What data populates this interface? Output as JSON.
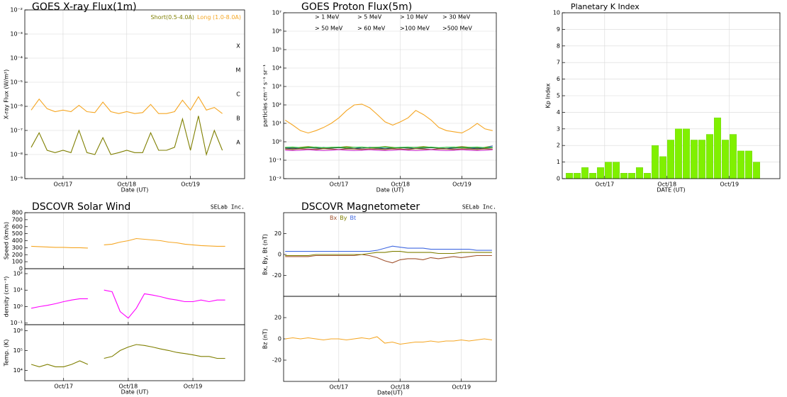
{
  "chart_data": [
    {
      "type": "line",
      "title": "GOES X-ray Flux(1m)",
      "xlabel": "Date (UT)",
      "ylabel": "X-ray Flux (W/m²)",
      "log": true,
      "grid": true,
      "xlim": [
        16.4,
        19.85
      ],
      "xticks": [
        {
          "value": 17,
          "label": "Oct/17"
        },
        {
          "value": 18,
          "label": "Oct/18"
        },
        {
          "value": 19,
          "label": "Oct/19"
        }
      ],
      "ylim": [
        1e-09,
        0.01
      ],
      "yticks": [
        {
          "value": 1e-09,
          "label": "10⁻⁹"
        },
        {
          "value": 1e-08,
          "label": "10⁻⁸"
        },
        {
          "value": 1e-07,
          "label": "10⁻⁷"
        },
        {
          "value": 1e-06,
          "label": "10⁻⁶"
        },
        {
          "value": 1e-05,
          "label": "10⁻⁵"
        },
        {
          "value": 0.0001,
          "label": "10⁻⁴"
        },
        {
          "value": 0.001,
          "label": "10⁻³"
        },
        {
          "value": 0.01,
          "label": "10⁻²"
        }
      ],
      "y2lim": [
        1e-09,
        0.01
      ],
      "y2ticks": [
        {
          "value": 3.2e-08,
          "label": "A"
        },
        {
          "value": 3.2e-07,
          "label": "B"
        },
        {
          "value": 3.2e-06,
          "label": "C"
        },
        {
          "value": 3.2e-05,
          "label": "M"
        },
        {
          "value": 0.00032,
          "label": "X"
        }
      ],
      "x": [
        16.5,
        16.625,
        16.75,
        16.875,
        17,
        17.125,
        17.25,
        17.375,
        17.5,
        17.625,
        17.75,
        17.875,
        18,
        18.125,
        18.25,
        18.375,
        18.5,
        18.625,
        18.75,
        18.875,
        19,
        19.125,
        19.25,
        19.375,
        19.5
      ],
      "series": [
        {
          "name": "Short(0.5-4.0A)",
          "color": "#7f7f00",
          "values": [
            2e-08,
            8e-08,
            1.5e-08,
            1.2e-08,
            1.5e-08,
            1.2e-08,
            1e-07,
            1.2e-08,
            1e-08,
            5e-08,
            1e-08,
            1.2e-08,
            1.5e-08,
            1.2e-08,
            1.2e-08,
            8e-08,
            1.5e-08,
            1.5e-08,
            2e-08,
            3e-07,
            1.5e-08,
            4e-07,
            1e-08,
            1e-07,
            1.5e-08
          ]
        },
        {
          "name": "Long (1.0-8.0A)",
          "color": "#f5a623",
          "values": [
            7e-07,
            2e-06,
            8e-07,
            6e-07,
            7e-07,
            6e-07,
            1.1e-06,
            6e-07,
            5.5e-07,
            1.5e-06,
            6e-07,
            5e-07,
            6e-07,
            5e-07,
            5.5e-07,
            1.2e-06,
            5e-07,
            5e-07,
            6e-07,
            1.8e-06,
            7e-07,
            2.5e-06,
            7e-07,
            9e-07,
            5e-07
          ]
        }
      ]
    },
    {
      "type": "line",
      "title": "GOES Proton Flux(5m)",
      "xlabel": "Date (UT)",
      "ylabel": "particles cm⁻² s⁻¹ sr⁻¹",
      "log": true,
      "grid": true,
      "xlim": [
        16.1,
        19.56
      ],
      "xticks": [
        {
          "value": 17,
          "label": "Oct/17"
        },
        {
          "value": 18,
          "label": "Oct/18"
        },
        {
          "value": 19,
          "label": "Oct/19"
        }
      ],
      "ylim": [
        0.01,
        10000000.0
      ],
      "yticks": [
        {
          "value": 0.01,
          "label": "10⁻²"
        },
        {
          "value": 0.1,
          "label": "10⁻¹"
        },
        {
          "value": 1,
          "label": "10⁰"
        },
        {
          "value": 10,
          "label": "10¹"
        },
        {
          "value": 100,
          "label": "10²"
        },
        {
          "value": 1000,
          "label": "10³"
        },
        {
          "value": 10000,
          "label": "10⁴"
        },
        {
          "value": 100000,
          "label": "10⁵"
        },
        {
          "value": 1000000,
          "label": "10⁶"
        },
        {
          "value": 10000000,
          "label": "10⁷"
        }
      ],
      "x": [
        16.125,
        16.25,
        16.375,
        16.5,
        16.625,
        16.75,
        16.875,
        17,
        17.125,
        17.25,
        17.375,
        17.5,
        17.625,
        17.75,
        17.875,
        18,
        18.125,
        18.25,
        18.375,
        18.5,
        18.625,
        18.75,
        18.875,
        19,
        19.125,
        19.25,
        19.375,
        19.5
      ],
      "series": [
        {
          "name": "> 1 MeV",
          "color": "#f5a623",
          "values": [
            15,
            8,
            4,
            3,
            4,
            6,
            10,
            20,
            50,
            100,
            110,
            70,
            30,
            12,
            8,
            12,
            20,
            50,
            30,
            15,
            6,
            4,
            3.5,
            3,
            5,
            10,
            5,
            4
          ]
        },
        {
          "name": "> 5 MeV",
          "color": "#7f7f00",
          "values": [
            0.5,
            0.45,
            0.5,
            0.55,
            0.5,
            0.45,
            0.5,
            0.5,
            0.55,
            0.5,
            0.45,
            0.5,
            0.5,
            0.55,
            0.5,
            0.45,
            0.5,
            0.5,
            0.55,
            0.5,
            0.45,
            0.5,
            0.5,
            0.55,
            0.5,
            0.45,
            0.5,
            0.6
          ]
        },
        {
          "name": "> 10 MeV",
          "color": "#4169e1",
          "values": [
            0.45,
            0.5,
            0.45,
            0.5,
            0.45,
            0.5,
            0.45,
            0.5,
            0.45,
            0.5,
            0.45,
            0.5,
            0.45,
            0.5,
            0.45,
            0.5,
            0.45,
            0.5,
            0.45,
            0.5,
            0.45,
            0.5,
            0.45,
            0.5,
            0.45,
            0.5,
            0.45,
            0.6
          ]
        },
        {
          "name": "> 30 MeV",
          "color": "#d2b48c",
          "values": [
            0.4,
            0.42,
            0.4,
            0.38,
            0.4,
            0.42,
            0.4,
            0.38,
            0.4,
            0.42,
            0.4,
            0.38,
            0.4,
            0.42,
            0.4,
            0.38,
            0.4,
            0.42,
            0.4,
            0.38,
            0.4,
            0.42,
            0.4,
            0.38,
            0.4,
            0.42,
            0.4,
            0.38
          ]
        },
        {
          "name": "> 50 MeV",
          "color": "#2f4f4f",
          "values": [
            0.45,
            0.42,
            0.45,
            0.48,
            0.45,
            0.42,
            0.45,
            0.48,
            0.45,
            0.42,
            0.45,
            0.48,
            0.45,
            0.42,
            0.45,
            0.48,
            0.45,
            0.42,
            0.45,
            0.48,
            0.45,
            0.42,
            0.45,
            0.48,
            0.45,
            0.42,
            0.45,
            0.48
          ]
        },
        {
          "name": "> 60 MeV",
          "color": "#32cd32",
          "values": [
            0.5,
            0.52,
            0.48,
            0.5,
            0.52,
            0.48,
            0.5,
            0.52,
            0.48,
            0.5,
            0.52,
            0.48,
            0.5,
            0.52,
            0.48,
            0.5,
            0.52,
            0.48,
            0.5,
            0.52,
            0.48,
            0.5,
            0.52,
            0.48,
            0.5,
            0.52,
            0.48,
            0.5
          ]
        },
        {
          "name": ">100 MeV",
          "color": "#a0522d",
          "values": [
            0.4,
            0.38,
            0.42,
            0.4,
            0.38,
            0.42,
            0.4,
            0.38,
            0.42,
            0.4,
            0.38,
            0.42,
            0.4,
            0.38,
            0.42,
            0.4,
            0.38,
            0.42,
            0.4,
            0.38,
            0.42,
            0.4,
            0.38,
            0.42,
            0.4,
            0.38,
            0.42,
            0.4
          ]
        },
        {
          "name": ">500 MeV",
          "color": "#cc33cc",
          "values": [
            0.35,
            0.33,
            0.35,
            0.37,
            0.35,
            0.33,
            0.35,
            0.37,
            0.35,
            0.33,
            0.35,
            0.37,
            0.35,
            0.33,
            0.35,
            0.37,
            0.35,
            0.33,
            0.35,
            0.37,
            0.35,
            0.33,
            0.35,
            0.37,
            0.35,
            0.33,
            0.35,
            0.37
          ]
        }
      ]
    },
    {
      "type": "bar",
      "title": "Planetary K Index",
      "xlabel": "DATE (UT)",
      "ylabel": "Kp Index",
      "grid": true,
      "color": "#80f000",
      "xlim": [
        16.32,
        19.81
      ],
      "xticks": [
        {
          "value": 17,
          "label": "Oct/17"
        },
        {
          "value": 18,
          "label": "Oct/18"
        },
        {
          "value": 19,
          "label": "Oct/19"
        }
      ],
      "ylim": [
        0,
        10
      ],
      "yticks": [
        0,
        1,
        2,
        3,
        4,
        5,
        6,
        7,
        8,
        9,
        10
      ],
      "x": [
        16.375,
        16.5,
        16.625,
        16.75,
        16.875,
        17,
        17.125,
        17.25,
        17.375,
        17.5,
        17.625,
        17.75,
        17.875,
        18,
        18.125,
        18.25,
        18.375,
        18.5,
        18.625,
        18.75,
        18.875,
        19,
        19.125,
        19.25,
        19.375
      ],
      "values": [
        0.33,
        0.33,
        0.67,
        0.33,
        0.67,
        1,
        1,
        0.33,
        0.33,
        0.67,
        0.33,
        2,
        1.33,
        2.33,
        3,
        3,
        2.33,
        2.33,
        2.67,
        3.67,
        2.33,
        2.67,
        1.67,
        1.67,
        1
      ]
    },
    {
      "type": "multipanel",
      "title": "DSCOVR Solar Wind",
      "annotation": "SELab Inc.",
      "xlabel": "Date (UT)",
      "grid": true,
      "xlim": [
        16.4,
        19.8
      ],
      "xticks": [
        {
          "value": 17,
          "label": "Oct/17"
        },
        {
          "value": 18,
          "label": "Oct/18"
        },
        {
          "value": 19,
          "label": "Oct/19"
        }
      ],
      "x": [
        16.5,
        16.625,
        16.75,
        16.875,
        17,
        17.125,
        17.25,
        17.375,
        17.5,
        17.625,
        17.75,
        17.875,
        18,
        18.125,
        18.25,
        18.375,
        18.5,
        18.625,
        18.75,
        18.875,
        19,
        19.125,
        19.25,
        19.375,
        19.5
      ],
      "panels": [
        {
          "ylabel": "Speed (km/s)",
          "ylim": [
            0,
            800
          ],
          "yticks": [
            0,
            100,
            200,
            300,
            400,
            500,
            600,
            700,
            800
          ],
          "series": [
            {
              "color": "#f5a623",
              "values": [
                320,
                315,
                310,
                305,
                305,
                300,
                300,
                295,
                null,
                340,
                350,
                380,
                400,
                430,
                420,
                410,
                400,
                380,
                370,
                350,
                340,
                330,
                325,
                320,
                320
              ]
            }
          ]
        },
        {
          "ylabel": "density (cm⁻³)",
          "log": true,
          "ylim": [
            0.08,
            200
          ],
          "yticks": [
            {
              "value": 0.1,
              "label": "10⁻¹"
            },
            {
              "value": 1,
              "label": "10⁰"
            },
            {
              "value": 10,
              "label": "10¹"
            },
            {
              "value": 100,
              "label": "10²"
            }
          ],
          "series": [
            {
              "color": "#ff00ff",
              "values": [
                0.8,
                1,
                1.2,
                1.5,
                2,
                2.5,
                3,
                3,
                null,
                10,
                8,
                0.5,
                0.2,
                0.8,
                6,
                5,
                4,
                3,
                2.5,
                2,
                2,
                2.5,
                2,
                2.5,
                2.5
              ]
            }
          ]
        },
        {
          "ylabel": "Temp. (K)",
          "log": true,
          "ylim": [
            3000,
            2000000
          ],
          "yticks": [
            {
              "value": 10000,
              "label": "10⁴"
            },
            {
              "value": 100000,
              "label": "10⁵"
            },
            {
              "value": 1000000,
              "label": "10⁶"
            }
          ],
          "series": [
            {
              "color": "#7f7f00",
              "values": [
                20000,
                15000,
                20000,
                15000,
                15000,
                20000,
                30000,
                20000,
                null,
                40000,
                50000,
                100000,
                150000,
                200000,
                180000,
                150000,
                120000,
                100000,
                80000,
                70000,
                60000,
                50000,
                50000,
                40000,
                40000
              ]
            }
          ]
        }
      ]
    },
    {
      "type": "multipanel",
      "title": "DSCOVR Magnetometer",
      "annotation": "SELab Inc.",
      "xlabel": "Date(UT)",
      "grid": true,
      "xlim": [
        16.1,
        19.57
      ],
      "xticks": [
        {
          "value": 17,
          "label": "Oct/17"
        },
        {
          "value": 18,
          "label": "Oct/18"
        },
        {
          "value": 19,
          "label": "Oct/19"
        }
      ],
      "x": [
        16.125,
        16.25,
        16.375,
        16.5,
        16.625,
        16.75,
        16.875,
        17,
        17.125,
        17.25,
        17.375,
        17.5,
        17.625,
        17.75,
        17.875,
        18,
        18.125,
        18.25,
        18.375,
        18.5,
        18.625,
        18.75,
        18.875,
        19,
        19.125,
        19.25,
        19.375,
        19.5
      ],
      "panels": [
        {
          "ylabel": "Bx, By, Bt (nT)",
          "ylim": [
            -40,
            40
          ],
          "yticks": [
            -20,
            0,
            20
          ],
          "series": [
            {
              "name": "Bx",
              "color": "#a0522d",
              "values": [
                -2,
                -2,
                -2,
                -2,
                -1,
                -1,
                -1,
                -1,
                -1,
                -1,
                0,
                -1,
                -3,
                -6,
                -8,
                -5,
                -4,
                -4,
                -5,
                -3,
                -4,
                -3,
                -2,
                -3,
                -2,
                -1,
                -1,
                -1
              ]
            },
            {
              "name": "By",
              "color": "#7f7f00",
              "values": [
                -1,
                -1,
                -1,
                -1,
                0,
                0,
                0,
                0,
                0,
                0,
                0,
                1,
                2,
                2,
                3,
                3,
                2,
                2,
                2,
                2,
                1,
                1,
                1,
                2,
                2,
                2,
                2,
                2
              ]
            },
            {
              "name": "Bt",
              "color": "#4169e1",
              "values": [
                3,
                3,
                3,
                3,
                3,
                3,
                3,
                3,
                3,
                3,
                3,
                3,
                4,
                6,
                8,
                7,
                6,
                6,
                6,
                5,
                5,
                5,
                5,
                5,
                5,
                4,
                4,
                4
              ]
            }
          ]
        },
        {
          "ylabel": "Bz (nT)",
          "ylim": [
            -40,
            40
          ],
          "yticks": [
            -20,
            0,
            20
          ],
          "series": [
            {
              "color": "#f5a623",
              "values": [
                0,
                1,
                0,
                1,
                0,
                -1,
                0,
                0,
                -1,
                0,
                1,
                0,
                2,
                -4,
                -3,
                -5,
                -4,
                -3,
                -3,
                -2,
                -3,
                -2,
                -2,
                -1,
                -2,
                -1,
                0,
                -1
              ]
            }
          ]
        }
      ]
    }
  ]
}
